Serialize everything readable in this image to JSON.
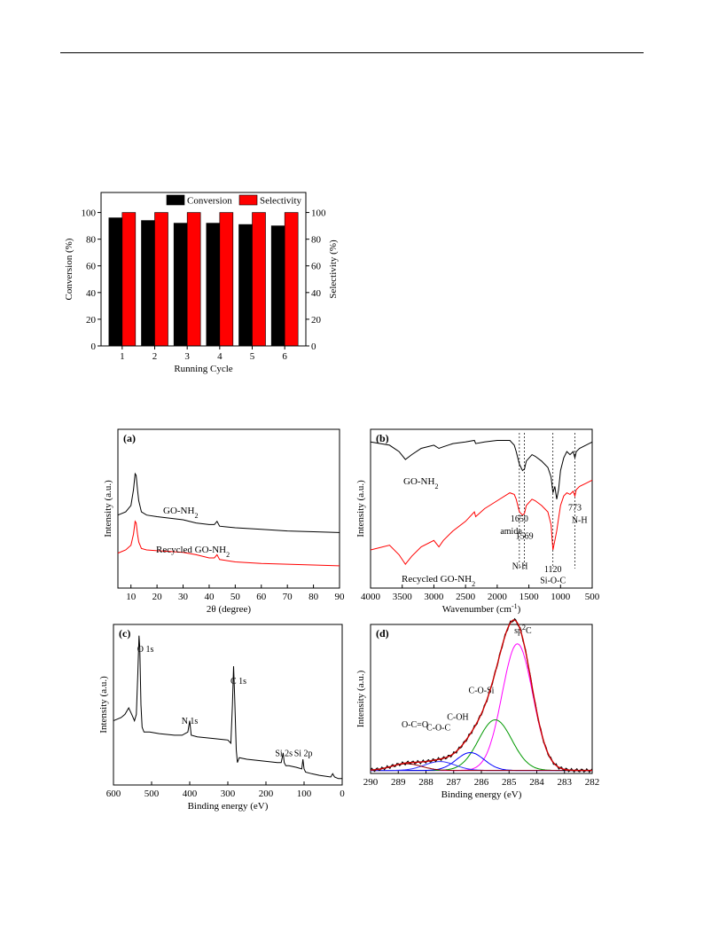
{
  "chart_data": [
    {
      "type": "bar",
      "categories": [
        "1",
        "2",
        "3",
        "4",
        "5",
        "6"
      ],
      "series": [
        {
          "name": "Conversion",
          "color": "#000000",
          "values": [
            96,
            94,
            92,
            92,
            91,
            90
          ]
        },
        {
          "name": "Selectivity",
          "color": "#ff0000",
          "values": [
            100,
            100,
            100,
            100,
            100,
            100
          ]
        }
      ],
      "xlabel": "Running Cycle",
      "ylabel": "Conversion (%)",
      "y2label": "Selectivity (%)",
      "ylim": [
        0,
        115
      ],
      "yticks": [
        "0",
        "20",
        "40",
        "60",
        "80",
        "100"
      ],
      "legend": "top-right"
    },
    {
      "type": "line",
      "panel": "(a)",
      "xlabel": "2θ (degree)",
      "ylabel": "Intensity (a.u.)",
      "xlim": [
        5,
        90
      ],
      "xticks": [
        "10",
        "20",
        "30",
        "40",
        "50",
        "60",
        "70",
        "80",
        "90"
      ],
      "series": [
        {
          "name": "GO-NH",
          "sub": "2",
          "color": "#000000",
          "x": [
            5,
            8,
            10,
            11,
            11.6,
            12,
            12.5,
            13,
            14,
            16,
            20,
            25,
            30,
            35,
            40,
            42,
            43,
            44,
            50,
            60,
            70,
            80,
            90
          ],
          "y": [
            0.46,
            0.48,
            0.52,
            0.62,
            0.72,
            0.71,
            0.62,
            0.55,
            0.48,
            0.46,
            0.45,
            0.44,
            0.43,
            0.41,
            0.4,
            0.4,
            0.42,
            0.39,
            0.38,
            0.37,
            0.36,
            0.355,
            0.35
          ]
        },
        {
          "name": "Recycled GO-NH",
          "sub": "2",
          "color": "#ff0000",
          "x": [
            5,
            8,
            10,
            11,
            11.6,
            12,
            12.5,
            13,
            14,
            16,
            20,
            25,
            30,
            35,
            40,
            42,
            43,
            44,
            50,
            60,
            70,
            80,
            90
          ],
          "y": [
            0.22,
            0.24,
            0.27,
            0.34,
            0.42,
            0.41,
            0.34,
            0.29,
            0.25,
            0.24,
            0.235,
            0.23,
            0.225,
            0.21,
            0.19,
            0.19,
            0.21,
            0.18,
            0.165,
            0.155,
            0.15,
            0.145,
            0.14
          ]
        }
      ]
    },
    {
      "type": "line",
      "panel": "(b)",
      "xlabel": "Wavenumber (cm",
      "xlabel_sup": "-1",
      "xlabel_end": ")",
      "ylabel": "Intensity (a.u.)",
      "xlim": [
        4000,
        500
      ],
      "xticks": [
        "4000",
        "3500",
        "3000",
        "2500",
        "2000",
        "1500",
        "1000",
        "500"
      ],
      "vlines": [
        1650,
        1569,
        1120,
        773
      ],
      "annotations": [
        {
          "text": "1650",
          "x": 1650,
          "y": 0.42
        },
        {
          "text": "amide",
          "x": 1780,
          "y": 0.34
        },
        {
          "text": "1569",
          "x": 1569,
          "y": 0.31
        },
        {
          "text": "N-H",
          "x": 1640,
          "y": 0.12
        },
        {
          "text": "1120",
          "x": 1120,
          "y": 0.1
        },
        {
          "text": "Si-O-C",
          "x": 1120,
          "y": 0.03
        },
        {
          "text": "773",
          "x": 773,
          "y": 0.49
        },
        {
          "text": "N-H",
          "x": 700,
          "y": 0.41
        }
      ],
      "series": [
        {
          "name": "GO-NH",
          "sub": "2",
          "color": "#000000",
          "x": [
            4000,
            3700,
            3550,
            3450,
            3350,
            3200,
            3000,
            2920,
            2850,
            2700,
            2500,
            2360,
            2340,
            2200,
            2000,
            1800,
            1730,
            1700,
            1650,
            1600,
            1569,
            1540,
            1450,
            1400,
            1300,
            1200,
            1150,
            1120,
            1090,
            1060,
            1030,
            1000,
            950,
            900,
            850,
            800,
            773,
            750,
            700,
            600,
            500
          ],
          "y": [
            0.92,
            0.9,
            0.86,
            0.81,
            0.84,
            0.88,
            0.9,
            0.88,
            0.89,
            0.91,
            0.92,
            0.93,
            0.91,
            0.92,
            0.93,
            0.93,
            0.9,
            0.86,
            0.78,
            0.74,
            0.75,
            0.8,
            0.84,
            0.83,
            0.8,
            0.76,
            0.7,
            0.6,
            0.64,
            0.56,
            0.62,
            0.74,
            0.82,
            0.86,
            0.84,
            0.86,
            0.82,
            0.86,
            0.88,
            0.9,
            0.92
          ]
        },
        {
          "name": "Recycled GO-NH",
          "sub": "2",
          "color": "#ff0000",
          "x": [
            4000,
            3700,
            3550,
            3450,
            3350,
            3200,
            3000,
            2920,
            2850,
            2700,
            2500,
            2360,
            2340,
            2200,
            2000,
            1800,
            1730,
            1700,
            1650,
            1600,
            1569,
            1540,
            1450,
            1400,
            1300,
            1200,
            1150,
            1120,
            1090,
            1060,
            1030,
            1000,
            950,
            900,
            850,
            800,
            773,
            750,
            700,
            600,
            500
          ],
          "y": [
            0.24,
            0.27,
            0.21,
            0.15,
            0.2,
            0.26,
            0.3,
            0.26,
            0.3,
            0.36,
            0.42,
            0.48,
            0.45,
            0.5,
            0.55,
            0.6,
            0.59,
            0.56,
            0.48,
            0.46,
            0.47,
            0.52,
            0.56,
            0.55,
            0.52,
            0.48,
            0.4,
            0.24,
            0.3,
            0.36,
            0.44,
            0.52,
            0.58,
            0.6,
            0.59,
            0.61,
            0.58,
            0.62,
            0.64,
            0.66,
            0.68
          ]
        }
      ]
    },
    {
      "type": "line",
      "panel": "(c)",
      "xlabel": "Binding energy (eV)",
      "ylabel": "Intensity (a.u.)",
      "xlim": [
        600,
        0
      ],
      "xticks": [
        "600",
        "500",
        "400",
        "300",
        "200",
        "100",
        "0"
      ],
      "annotations": [
        {
          "text": "O 1s",
          "x": 516,
          "y": 0.83
        },
        {
          "text": "N 1s",
          "x": 400,
          "y": 0.38
        },
        {
          "text": "C 1s",
          "x": 272,
          "y": 0.63
        },
        {
          "text": "Si 2s",
          "x": 153,
          "y": 0.18
        },
        {
          "text": "Si 2p",
          "x": 102,
          "y": 0.18
        }
      ],
      "series": [
        {
          "name": "",
          "color": "#000000",
          "x": [
            600,
            580,
            570,
            560,
            552,
            545,
            540,
            536,
            533,
            531,
            528,
            525,
            520,
            505,
            480,
            440,
            420,
            405,
            400,
            396,
            380,
            340,
            300,
            292,
            288,
            285,
            282,
            278,
            275,
            270,
            250,
            210,
            170,
            160,
            155,
            152,
            148,
            140,
            120,
            106,
            103,
            100,
            96,
            80,
            60,
            30,
            25,
            20,
            10,
            0
          ],
          "y": [
            0.4,
            0.42,
            0.44,
            0.48,
            0.44,
            0.4,
            0.44,
            0.7,
            0.93,
            0.85,
            0.5,
            0.36,
            0.33,
            0.33,
            0.32,
            0.31,
            0.31,
            0.33,
            0.4,
            0.31,
            0.3,
            0.29,
            0.28,
            0.26,
            0.5,
            0.74,
            0.55,
            0.22,
            0.14,
            0.17,
            0.16,
            0.15,
            0.14,
            0.14,
            0.2,
            0.14,
            0.12,
            0.12,
            0.11,
            0.1,
            0.16,
            0.1,
            0.08,
            0.07,
            0.06,
            0.05,
            0.07,
            0.05,
            0.04,
            0.04
          ]
        }
      ]
    },
    {
      "type": "line",
      "panel": "(d)",
      "xlabel": "Binding energy (eV)",
      "ylabel": "Intensity (a.u.)",
      "xlim": [
        290,
        282
      ],
      "xticks": [
        "290",
        "289",
        "288",
        "287",
        "286",
        "285",
        "284",
        "283",
        "282"
      ],
      "annotations": [
        {
          "text": "sp",
          "sup": "2",
          "text_end": "C",
          "x": 284.5,
          "y": 0.94
        },
        {
          "text": "C-O-Si",
          "x": 286.0,
          "y": 0.54
        },
        {
          "text": "C-OH",
          "x": 286.85,
          "y": 0.36
        },
        {
          "text": "C-O-C",
          "x": 287.55,
          "y": 0.29
        },
        {
          "text": "O-C=O",
          "x": 288.4,
          "y": 0.31
        }
      ],
      "components": [
        {
          "name": "sp2C",
          "color": "#ff00ff",
          "center": 284.7,
          "sigma": 0.55,
          "amp": 0.85
        },
        {
          "name": "C-O-Si",
          "color": "#009900",
          "center": 285.5,
          "sigma": 0.6,
          "amp": 0.34
        },
        {
          "name": "C-OH",
          "color": "#0000ff",
          "center": 286.4,
          "sigma": 0.5,
          "amp": 0.12
        },
        {
          "name": "C-O-C",
          "color": "#3333ff",
          "center": 287.5,
          "sigma": 0.55,
          "amp": 0.06
        },
        {
          "name": "O-C=O",
          "color": "#990000",
          "center": 288.7,
          "sigma": 0.55,
          "amp": 0.045
        }
      ],
      "baseline": 0.02,
      "envelope_color": "#cc0000",
      "raw_color": "#000000",
      "baseline_color": "#7700cc"
    }
  ]
}
